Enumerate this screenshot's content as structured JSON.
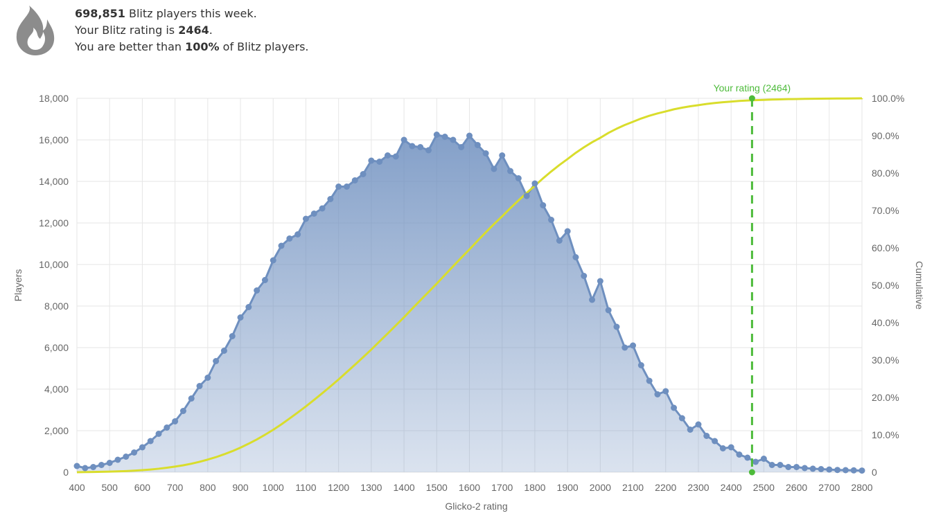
{
  "header": {
    "players_count": "698,851",
    "players_suffix": " Blitz players this week.",
    "rating_prefix": "Your Blitz rating is ",
    "rating_value": "2464",
    "rating_suffix": ".",
    "better_prefix": "You are better than ",
    "better_value": "100%",
    "better_suffix": " of Blitz players.",
    "icon": "flame-icon"
  },
  "chart_data": {
    "type": "area",
    "xlabel": "Glicko-2 rating",
    "ylabel": "Players",
    "ylabel_right": "Cumulative",
    "xlim": [
      400,
      2800
    ],
    "ylim": [
      0,
      18000
    ],
    "ylim_right": [
      0,
      100
    ],
    "x_ticks": [
      "400",
      "500",
      "600",
      "700",
      "800",
      "900",
      "1000",
      "1100",
      "1200",
      "1300",
      "1400",
      "1500",
      "1600",
      "1700",
      "1800",
      "1900",
      "2000",
      "2100",
      "2200",
      "2300",
      "2400",
      "2500",
      "2600",
      "2700",
      "2800"
    ],
    "y_ticks": [
      "0",
      "2,000",
      "4,000",
      "6,000",
      "8,000",
      "10,000",
      "12,000",
      "14,000",
      "16,000",
      "18,000"
    ],
    "y_ticks_right": [
      "0",
      "10.0%",
      "20.0%",
      "30.0%",
      "40.0%",
      "50.0%",
      "60.0%",
      "70.0%",
      "80.0%",
      "90.0%",
      "100.0%"
    ],
    "grid": true,
    "x": [
      400,
      425,
      450,
      475,
      500,
      525,
      550,
      575,
      600,
      625,
      650,
      675,
      700,
      725,
      750,
      775,
      800,
      825,
      850,
      875,
      900,
      925,
      950,
      975,
      1000,
      1025,
      1050,
      1075,
      1100,
      1125,
      1150,
      1175,
      1200,
      1225,
      1250,
      1275,
      1300,
      1325,
      1350,
      1375,
      1400,
      1425,
      1450,
      1475,
      1500,
      1525,
      1550,
      1575,
      1600,
      1625,
      1650,
      1675,
      1700,
      1725,
      1750,
      1775,
      1800,
      1825,
      1850,
      1875,
      1900,
      1925,
      1950,
      1975,
      2000,
      2025,
      2050,
      2075,
      2100,
      2125,
      2150,
      2175,
      2200,
      2225,
      2250,
      2275,
      2300,
      2325,
      2350,
      2375,
      2400,
      2425,
      2450,
      2475,
      2500,
      2525,
      2550,
      2575,
      2600,
      2625,
      2650,
      2675,
      2700,
      2725,
      2750,
      2775,
      2800
    ],
    "series": [
      {
        "name": "Players",
        "color": "#6e8fbf",
        "values": [
          300,
          200,
          250,
          350,
          450,
          600,
          750,
          950,
          1200,
          1500,
          1850,
          2150,
          2450,
          2950,
          3550,
          4150,
          4550,
          5350,
          5850,
          6550,
          7450,
          7950,
          8750,
          9250,
          10200,
          10900,
          11250,
          11450,
          12200,
          12450,
          12700,
          13150,
          13750,
          13750,
          14050,
          14350,
          15000,
          14950,
          15250,
          15200,
          16000,
          15700,
          15650,
          15500,
          16250,
          16150,
          16000,
          15650,
          16200,
          15750,
          15350,
          14600,
          15250,
          14500,
          14150,
          13300,
          13900,
          12850,
          12150,
          11150,
          11600,
          10350,
          9450,
          8300,
          9200,
          7800,
          7000,
          6000,
          6100,
          5150,
          4400,
          3750,
          3900,
          3100,
          2600,
          2050,
          2300,
          1750,
          1500,
          1150,
          1200,
          850,
          700,
          500,
          650,
          350,
          350,
          250,
          250,
          200,
          170,
          150,
          130,
          110,
          100,
          90,
          80
        ]
      },
      {
        "name": "Cumulative",
        "color": "#d9dd2c",
        "axis": "right"
      }
    ],
    "annotations": [
      {
        "type": "vertical-line",
        "x": 2464,
        "label": "Your rating (2464)",
        "color": "#4dbb3a",
        "style": "dashed"
      }
    ]
  }
}
